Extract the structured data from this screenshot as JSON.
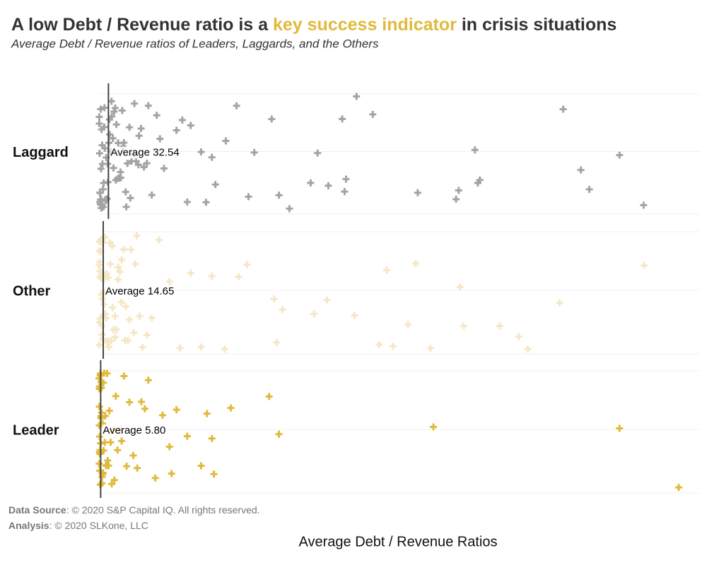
{
  "chart_data": {
    "type": "strip",
    "title_parts": [
      "A low Debt / Revenue ratio is a ",
      "key success indicator",
      " in crisis situations"
    ],
    "title_highlight_color": "#e0ba3c",
    "subtitle": "Average Debt / Revenue ratios of Leaders, Laggards, and the Others",
    "x_label": "Average Debt / Revenue Ratios",
    "source_label": "Data Source",
    "source_text": ": © 2020 S&P Capital IQ. All rights reserved.",
    "analysis_label": "Analysis",
    "analysis_text": ": © 2020 SLKone, LLC",
    "xlim": [
      0,
      2070
    ],
    "series": [
      {
        "name": "Laggard",
        "color": "#a3a3a3",
        "average": 32.54,
        "average_label": "Average 32.54",
        "values": [
          1,
          2,
          3,
          4,
          5,
          6,
          7,
          8,
          9,
          10,
          12,
          14,
          16,
          18,
          20,
          22,
          25,
          28,
          31,
          34,
          37,
          40,
          44,
          48,
          52,
          56,
          60,
          65,
          70,
          75,
          80,
          86,
          92,
          98,
          105,
          112,
          120,
          128,
          136,
          145,
          155,
          165,
          1,
          3,
          5,
          8,
          11,
          15,
          19,
          24,
          30,
          36,
          43,
          50,
          58,
          66,
          74,
          83,
          94,
          108,
          122,
          138,
          210,
          170,
          182,
          199,
          224,
          267,
          287,
          304,
          316,
          352,
          369,
          389,
          401,
          437,
          474,
          515,
          535,
          595,
          620,
          656,
          729,
          753,
          790,
          838,
          846,
          851,
          887,
          943,
          1098,
          1230,
          1239,
          1295,
          1305,
          1312,
          1599,
          1660,
          1689,
          1793,
          1876
        ]
      },
      {
        "name": "Other",
        "color": "#f5e7c4",
        "average": 14.65,
        "average_label": "Average 14.65",
        "values": [
          0.5,
          1,
          1.5,
          2,
          3,
          4,
          5,
          6,
          7,
          8,
          9,
          10,
          11,
          12,
          14,
          16,
          18,
          20,
          22,
          25,
          28,
          31,
          34,
          38,
          42,
          46,
          50,
          55,
          60,
          66,
          72,
          78,
          85,
          92,
          100,
          110,
          120,
          130,
          140,
          150,
          165,
          1,
          2,
          3,
          4,
          6,
          8,
          10,
          13,
          17,
          21,
          26,
          32,
          39,
          47,
          56,
          66,
          77,
          90,
          105,
          125,
          182,
          207,
          243,
          279,
          316,
          352,
          389,
          433,
          481,
          510,
          603,
          612,
          632,
          741,
          785,
          880,
          965,
          991,
          1013,
          1064,
          1091,
          1142,
          1244,
          1256,
          1380,
          1446,
          1477,
          1587,
          1878
        ]
      },
      {
        "name": "Leader",
        "color": "#e0ba3c",
        "average": 5.8,
        "average_label": "Average 5.80",
        "values": [
          0.2,
          0.5,
          0.8,
          1,
          1.3,
          1.6,
          2,
          2.4,
          2.8,
          3.2,
          3.6,
          4,
          4.5,
          5,
          5.5,
          6,
          6.5,
          7,
          7.5,
          8,
          9,
          10,
          11,
          12,
          13,
          14,
          15,
          16,
          18,
          20,
          22,
          24,
          26,
          28,
          30,
          33,
          36,
          40,
          44,
          48,
          53,
          58,
          64,
          70,
          78,
          86,
          95,
          105,
          118,
          132,
          146,
          158,
          170,
          194,
          219,
          243,
          250,
          267,
          304,
          352,
          372,
          389,
          396,
          454,
          586,
          620,
          1152,
          1793,
          1997
        ]
      }
    ]
  }
}
